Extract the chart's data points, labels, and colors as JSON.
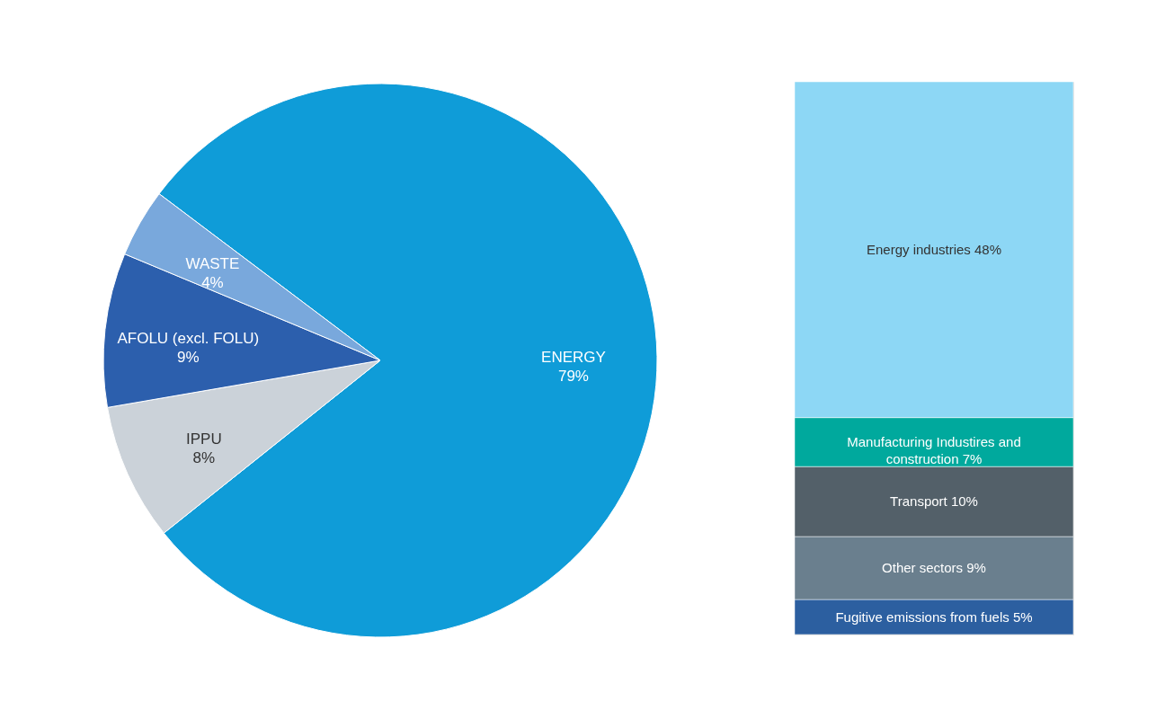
{
  "chart_data": [
    {
      "type": "pie",
      "categories": [
        "ENERGY",
        "IPPU",
        "AFOLU (excl. FOLU)",
        "WASTE"
      ],
      "values": [
        79,
        8,
        9,
        4
      ],
      "colors": [
        "#0f9cd8",
        "#cbd2d9",
        "#2c5fad",
        "#79a8dc"
      ],
      "value_labels": [
        "79%",
        "8%",
        "9%",
        "4%"
      ],
      "legend": false
    },
    {
      "type": "bar",
      "stacked": true,
      "categories": [
        null
      ],
      "legend": false,
      "series": [
        {
          "color": "#2c5fa0",
          "values": [
            5
          ],
          "value_labels": [
            "Fugitive emissions from fuels  5%"
          ]
        },
        {
          "color": "#6a7f8e",
          "values": [
            9
          ],
          "value_labels": [
            "Other sectors 9%"
          ]
        },
        {
          "color": "#536069",
          "values": [
            10
          ],
          "value_labels": [
            "Transport 10%"
          ]
        },
        {
          "color": "#00a99d",
          "values": [
            7
          ],
          "value_labels": [
            "Manufacturing Industires and construction 7%"
          ]
        },
        {
          "color": "#8dd7f5",
          "values": [
            48
          ],
          "value_labels": [
            "Energy industries 48%"
          ]
        }
      ]
    }
  ]
}
